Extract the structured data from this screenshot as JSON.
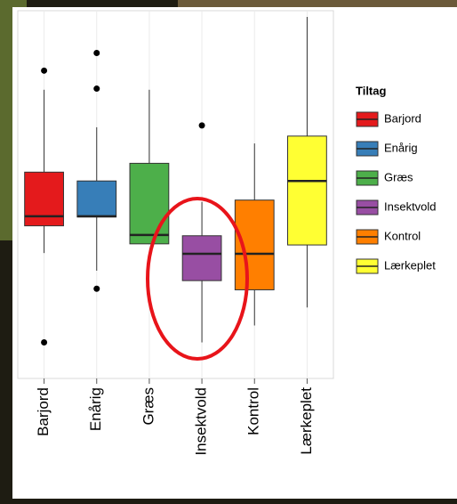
{
  "chart_data": {
    "type": "box",
    "categories": [
      "Barjord",
      "Enårig",
      "Græs",
      "Insektvold",
      "Kontrol",
      "Lærkeplet"
    ],
    "colors": [
      "#e41a1c",
      "#377eb8",
      "#4daf4a",
      "#984ea3",
      "#ff7f00",
      "#ffff33"
    ],
    "boxes": [
      {
        "whisker_low": 34.1,
        "q1": 41.5,
        "median": 44.1,
        "q3": 56.1,
        "whisker_high": 78.5,
        "outliers": [
          83.7,
          9.8
        ]
      },
      {
        "whisker_low": 29.3,
        "q1": 43.9,
        "median": 44.1,
        "q3": 53.7,
        "whisker_high": 68.3,
        "outliers": [
          88.5,
          78.8,
          24.4
        ]
      },
      {
        "whisker_low": 36.6,
        "q1": 36.6,
        "median": 39.0,
        "q3": 58.5,
        "whisker_high": 78.5,
        "outliers": []
      },
      {
        "whisker_low": 9.8,
        "q1": 26.6,
        "median": 33.9,
        "q3": 38.8,
        "whisker_high": 48.0,
        "outliers": [
          68.8
        ]
      },
      {
        "whisker_low": 14.4,
        "q1": 24.1,
        "median": 33.9,
        "q3": 48.5,
        "whisker_high": 63.9,
        "outliers": []
      },
      {
        "whisker_low": 19.3,
        "q1": 36.3,
        "median": 53.7,
        "q3": 65.9,
        "whisker_high": 98.3,
        "outliers": []
      }
    ],
    "ylim": [
      0,
      100
    ],
    "legend": {
      "title": "Tiltag"
    }
  }
}
